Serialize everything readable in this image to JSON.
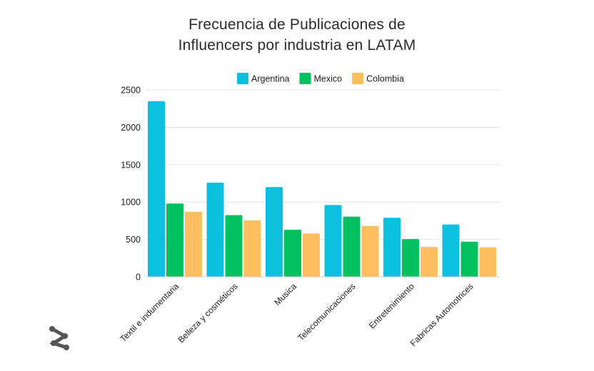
{
  "chart_data": {
    "type": "bar",
    "title_lines": [
      "Frecuencia de Publicaciones de",
      "Influencers por industria en LATAM"
    ],
    "xlabel": "",
    "ylabel": "",
    "ylim": [
      0,
      2500
    ],
    "yticks": [
      "0",
      "500",
      "1000",
      "1500",
      "2000",
      "2500"
    ],
    "ytick_values": [
      0,
      500,
      1000,
      1500,
      2000,
      2500
    ],
    "grid": true,
    "legend_position": "top",
    "categories": [
      "Textil e indumentaria",
      "Belleza y cosméticos",
      "Musica",
      "Telecomunicaciones",
      "Entretenimiento",
      "Fabricas Automotrices"
    ],
    "series": [
      {
        "name": "Argentina",
        "color": "#0cc0e0",
        "values": [
          2350,
          1260,
          1200,
          960,
          790,
          700
        ]
      },
      {
        "name": "Mexico",
        "color": "#00c060",
        "values": [
          980,
          825,
          630,
          805,
          505,
          470
        ]
      },
      {
        "name": "Colombia",
        "color": "#ffbf5e",
        "values": [
          870,
          755,
          580,
          680,
          400,
          395
        ]
      }
    ]
  },
  "logo": {
    "icon": "brand-logo-icon",
    "color": "#555555"
  }
}
